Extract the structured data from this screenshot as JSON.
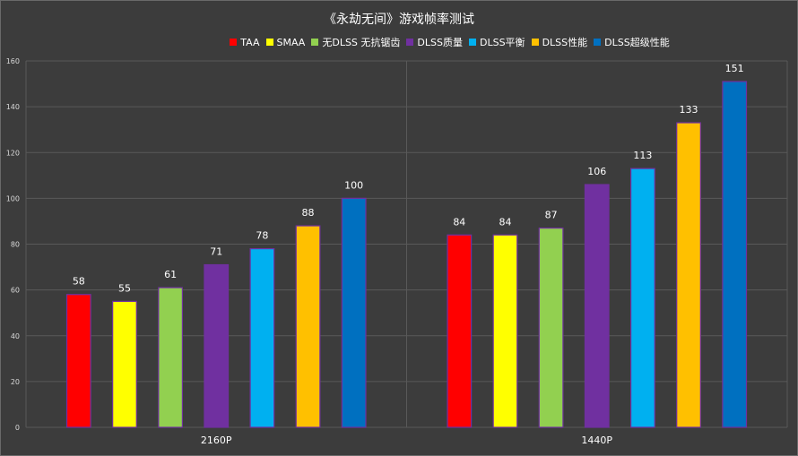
{
  "chart_data": {
    "type": "bar",
    "title": "《永劫无间》游戏帧率测试",
    "categories": [
      "2160P",
      "1440P"
    ],
    "ylim": [
      0,
      160
    ],
    "yticks": [
      0,
      20,
      40,
      60,
      80,
      100,
      120,
      140,
      160
    ],
    "grid": true,
    "legend_position": "top",
    "series": [
      {
        "name": "TAA",
        "color": "#ff0000",
        "values": [
          58,
          84
        ]
      },
      {
        "name": "SMAA",
        "color": "#ffff00",
        "values": [
          55,
          84
        ]
      },
      {
        "name": "无DLSS 无抗锯齿",
        "color": "#92d050",
        "values": [
          61,
          87
        ]
      },
      {
        "name": "DLSS质量",
        "color": "#7030a0",
        "values": [
          71,
          106
        ]
      },
      {
        "name": "DLSS平衡",
        "color": "#00b0f0",
        "values": [
          78,
          113
        ]
      },
      {
        "name": "DLSS性能",
        "color": "#ffc000",
        "values": [
          88,
          133
        ]
      },
      {
        "name": "DLSS超级性能",
        "color": "#0070c0",
        "values": [
          100,
          151
        ]
      }
    ]
  }
}
